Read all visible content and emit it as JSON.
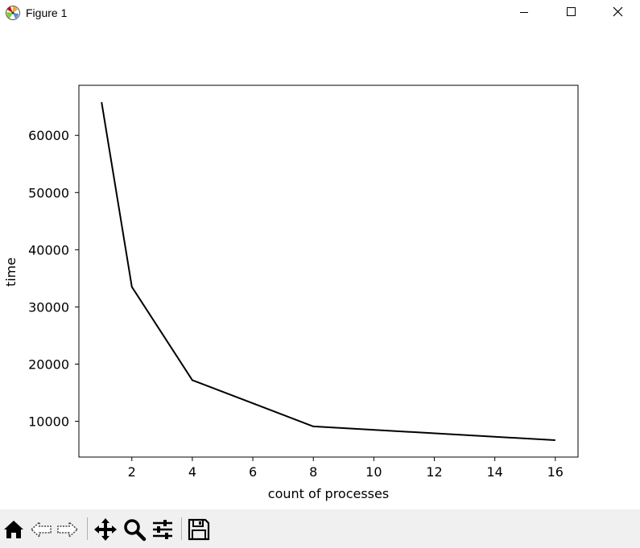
{
  "window": {
    "title": "Figure 1",
    "controls": [
      "minimize",
      "maximize",
      "close"
    ]
  },
  "toolbar": {
    "buttons": [
      {
        "name": "home-button",
        "icon": "home-icon"
      },
      {
        "name": "back-button",
        "icon": "arrow-left-icon"
      },
      {
        "name": "forward-button",
        "icon": "arrow-right-icon"
      },
      {
        "name": "pan-button",
        "icon": "move-icon"
      },
      {
        "name": "zoom-button",
        "icon": "magnifier-icon"
      },
      {
        "name": "configure-subplots-button",
        "icon": "sliders-icon"
      },
      {
        "name": "save-button",
        "icon": "floppy-disk-icon"
      }
    ]
  },
  "chart_data": {
    "type": "line",
    "title": "",
    "xlabel": "count of processes",
    "ylabel": "time",
    "x": [
      1,
      2,
      4,
      8,
      16
    ],
    "series": [
      {
        "values": [
          65800,
          33500,
          17200,
          9100,
          6700
        ],
        "color": "#000000"
      }
    ],
    "xlim": [
      0.25,
      16.75
    ],
    "ylim": [
      3745,
      68755
    ],
    "xticks": [
      2,
      4,
      6,
      8,
      10,
      12,
      14,
      16
    ],
    "yticks": [
      10000,
      20000,
      30000,
      40000,
      50000,
      60000
    ],
    "grid": false,
    "legend": "none"
  }
}
